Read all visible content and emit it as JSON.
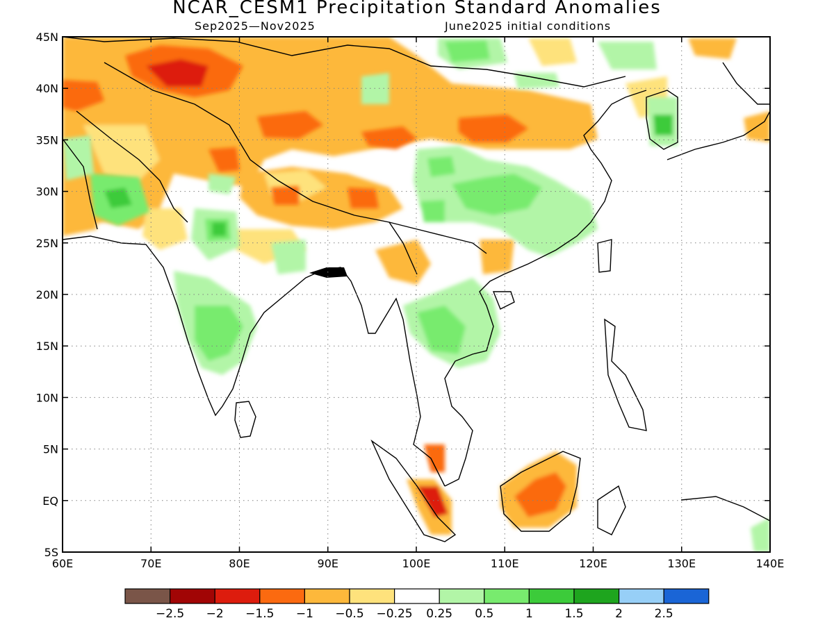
{
  "title": "NCAR_CESM1 Precipitation Standard Anomalies",
  "subtitle_left": "Sep2025—Nov2025",
  "subtitle_right": "June2025 initial conditions",
  "map": {
    "lon_range": [
      60,
      140
    ],
    "lat_range": [
      -5,
      45
    ],
    "lon_ticks": [
      60,
      70,
      80,
      90,
      100,
      110,
      120,
      130,
      140
    ],
    "lon_tick_labels": [
      "60E",
      "70E",
      "80E",
      "90E",
      "100E",
      "110E",
      "120E",
      "130E",
      "140E"
    ],
    "lat_ticks": [
      45,
      40,
      35,
      30,
      25,
      20,
      15,
      10,
      5,
      0,
      -5
    ],
    "lat_tick_labels": [
      "45N",
      "40N",
      "35N",
      "30N",
      "25N",
      "20N",
      "15N",
      "10N",
      "5N",
      "EQ",
      "5S"
    ],
    "grid": "dotted"
  },
  "colorbar": {
    "colors": [
      "#7a5548",
      "#a10505",
      "#dd1c0d",
      "#fb6a10",
      "#fdb83b",
      "#fee27c",
      "#ffffff",
      "#b2f5a7",
      "#78eb6e",
      "#3ccb3a",
      "#1ea51e",
      "#97cff7",
      "#1a65d6"
    ],
    "labels": [
      "−2.5",
      "−2",
      "−1.5",
      "−1",
      "−0.5",
      "−0.25",
      "0.25",
      "0.5",
      "1",
      "1.5",
      "2",
      "2.5"
    ]
  }
}
